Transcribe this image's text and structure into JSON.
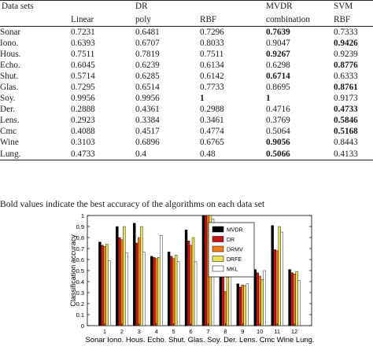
{
  "table": {
    "headers_top": [
      "Data sets",
      "",
      "DR",
      "",
      "MVDR",
      "SVM"
    ],
    "headers_bottom": [
      "",
      "Linear",
      "poly",
      "RBF",
      "combination",
      "RBF"
    ],
    "rows": [
      {
        "name": "Sonar",
        "values": [
          "0.7231",
          "0.6481",
          "0.7296",
          "0.7639",
          "0.7333"
        ],
        "bold": [
          false,
          false,
          false,
          true,
          false
        ]
      },
      {
        "name": "Iono.",
        "values": [
          "0.6393",
          "0.6707",
          "0.8033",
          "0.9047",
          "0.9426"
        ],
        "bold": [
          false,
          false,
          false,
          false,
          true
        ]
      },
      {
        "name": "Hous.",
        "values": [
          "0.7511",
          "0.7819",
          "0.7511",
          "0.9267",
          "0.9239"
        ],
        "bold": [
          false,
          false,
          false,
          true,
          false
        ]
      },
      {
        "name": "Echo.",
        "values": [
          "0.6045",
          "0.6239",
          "0.6134",
          "0.6298",
          "0.8776"
        ],
        "bold": [
          false,
          false,
          false,
          false,
          true
        ]
      },
      {
        "name": "Shut.",
        "values": [
          "0.5714",
          "0.6285",
          "0.6142",
          "0.6714",
          "0.6333"
        ],
        "bold": [
          false,
          false,
          false,
          true,
          false
        ]
      },
      {
        "name": "Glas.",
        "values": [
          "0.7295",
          "0.6514",
          "0.7733",
          "0.8695",
          "0.8761"
        ],
        "bold": [
          false,
          false,
          false,
          false,
          true
        ]
      },
      {
        "name": "Soy.",
        "values": [
          "0.9956",
          "0.9956",
          "1",
          "1",
          "0.9173"
        ],
        "bold": [
          false,
          false,
          true,
          true,
          false
        ]
      },
      {
        "name": "Der.",
        "values": [
          "0.2888",
          "0.4361",
          "0.2988",
          "0.4716",
          "0.4733"
        ],
        "bold": [
          false,
          false,
          false,
          false,
          true
        ]
      },
      {
        "name": "Lens.",
        "values": [
          "0.2923",
          "0.3384",
          "0.3461",
          "0.3769",
          "0.5846"
        ],
        "bold": [
          false,
          false,
          false,
          false,
          true
        ]
      },
      {
        "name": "Cmc",
        "values": [
          "0.4088",
          "0.4517",
          "0.4774",
          "0.5064",
          "0.5168"
        ],
        "bold": [
          false,
          false,
          false,
          false,
          true
        ]
      },
      {
        "name": "Wine",
        "values": [
          "0.3103",
          "0.6896",
          "0.6765",
          "0.9056",
          "0.8443"
        ],
        "bold": [
          false,
          false,
          false,
          true,
          false
        ]
      },
      {
        "name": "Lung.",
        "values": [
          "0.4733",
          "0.4",
          "0.48",
          "0.5066",
          "0.4133"
        ],
        "bold": [
          false,
          false,
          false,
          true,
          false
        ]
      }
    ]
  },
  "caption": "Bold values indicate the best accuracy of the algorithms on each data set",
  "chart_data": {
    "type": "bar",
    "ylabel": "Classification accuracy",
    "xlabel": "Sonar Iono. Hous. Echo. Shut. Glas. Soy. Der. Lens. Cmc Wine Lung.",
    "categories": [
      "1",
      "2",
      "3",
      "4",
      "5",
      "6",
      "7",
      "8",
      "9",
      "10",
      "11",
      "12"
    ],
    "ylim": [
      0,
      1
    ],
    "yticks": [
      "0",
      "0.1",
      "0.2",
      "0.3",
      "0.4",
      "0.5",
      "0.6",
      "0.7",
      "0.8",
      "0.9",
      "1"
    ],
    "legend_position": "top-right",
    "series": [
      {
        "name": "MVDR",
        "color": "#000000",
        "values": [
          0.76,
          0.9,
          0.93,
          0.63,
          0.67,
          0.87,
          1.0,
          0.47,
          0.38,
          0.51,
          0.91,
          0.51
        ]
      },
      {
        "name": "DR",
        "color": "#c0171b",
        "values": [
          0.73,
          0.8,
          0.75,
          0.62,
          0.63,
          0.77,
          1.0,
          0.44,
          0.35,
          0.48,
          0.69,
          0.48
        ]
      },
      {
        "name": "DRMV",
        "color": "#f07d1a",
        "values": [
          0.72,
          0.78,
          0.8,
          0.61,
          0.61,
          0.73,
          1.0,
          0.31,
          0.37,
          0.45,
          0.68,
          0.47
        ]
      },
      {
        "name": "DRFE",
        "color": "#eee15a",
        "values": [
          0.74,
          0.9,
          0.9,
          0.62,
          0.64,
          0.8,
          1.0,
          0.44,
          0.36,
          0.42,
          0.9,
          0.49
        ]
      },
      {
        "name": "MKL",
        "color": "#ffffff",
        "values": [
          0.59,
          0.66,
          0.67,
          0.82,
          0.58,
          0.58,
          0.97,
          0.5,
          0.38,
          0.5,
          0.85,
          0.41
        ]
      }
    ]
  }
}
